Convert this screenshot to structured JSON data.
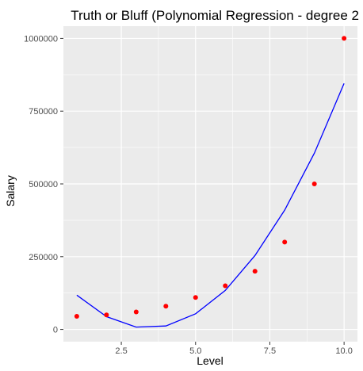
{
  "chart_data": {
    "type": "scatter",
    "title": "Truth or Bluff (Polynomial Regression - degree 2",
    "xlabel": "Level",
    "ylabel": "Salary",
    "xlim": [
      0.55,
      10.45
    ],
    "ylim": [
      -42000,
      1042000
    ],
    "x_ticks": [
      2.5,
      5.0,
      7.5,
      10.0
    ],
    "x_tick_labels": [
      "2.5",
      "5.0",
      "7.5",
      "10.0"
    ],
    "y_ticks": [
      0,
      250000,
      500000,
      750000,
      1000000
    ],
    "y_tick_labels": [
      "0",
      "250000",
      "500000",
      "750000",
      "1000000"
    ],
    "grid": true,
    "legend": "none",
    "series": [
      {
        "kind": "points",
        "color": "#ff0000",
        "x": [
          1,
          2,
          3,
          4,
          5,
          6,
          7,
          8,
          9,
          10
        ],
        "y": [
          45000,
          50000,
          60000,
          80000,
          110000,
          150000,
          200000,
          300000,
          500000,
          1000000
        ]
      },
      {
        "kind": "line",
        "color": "#0000ff",
        "x": [
          1,
          2,
          3,
          4,
          5,
          6,
          7,
          8,
          9,
          10
        ],
        "y": [
          118000,
          44000,
          8000,
          12000,
          54000,
          134000,
          254000,
          410000,
          606000,
          845000
        ]
      }
    ]
  }
}
